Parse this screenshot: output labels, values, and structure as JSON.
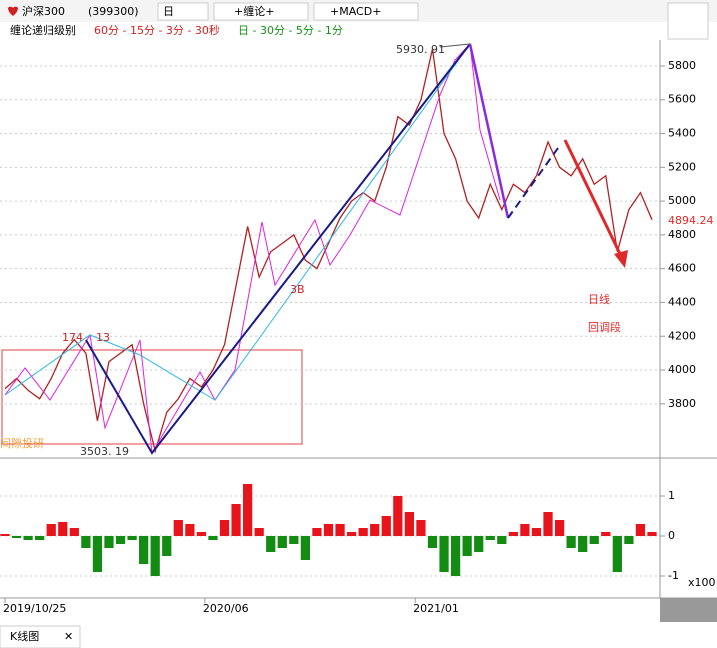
{
  "toolbar": {
    "name": "沪深300",
    "code": "(399300)",
    "period": "日",
    "indicator1": "+缠论+",
    "indicator2": "+MACD+"
  },
  "levels": {
    "label": "缠论递归级别",
    "minor": "60分 - 15分 - 3分 - 30秒",
    "major": "日 - 30分 - 5分 - 1分"
  },
  "annotations": {
    "high": "5930. 91",
    "low": "3503. 19",
    "pivot_a": "174",
    "pivot_b": "13",
    "buy_point": "3B",
    "callout_1": "日线",
    "callout_2": "回调段",
    "watermark": "间隙投研",
    "last_price": "4894.24",
    "macd_unit": "x100"
  },
  "tab": "K线图",
  "chart_data": [
    {
      "type": "line",
      "name": "price",
      "color": "#b22222",
      "values": [
        3890,
        3950,
        3880,
        3830,
        3950,
        4100,
        4180,
        4100,
        3700,
        4050,
        4100,
        4150,
        3800,
        3520,
        3750,
        3830,
        3950,
        3900,
        4000,
        4150,
        4500,
        4850,
        4550,
        4700,
        4750,
        4800,
        4650,
        4600,
        4750,
        4900,
        5000,
        5050,
        5000,
        5200,
        5500,
        5450,
        5600,
        5900,
        5400,
        5250,
        5000,
        4900,
        5100,
        4950,
        5100,
        5050,
        5150,
        5350,
        5200,
        5150,
        5250,
        5100,
        5150,
        4700,
        4950,
        5050,
        4890
      ],
      "ylim": [
        3503,
        5930
      ],
      "yticks": [
        3800,
        4000,
        4200,
        4400,
        4600,
        4800,
        5000,
        5200,
        5400,
        5600,
        5800
      ],
      "xticks": [
        {
          "value": 0,
          "label": "2019/10/25"
        },
        {
          "value": 17.3,
          "label": "2020/06"
        },
        {
          "value": 35.5,
          "label": "2021/01"
        }
      ]
    },
    {
      "type": "bar",
      "name": "macd",
      "colors": {
        "up": "#e8141c",
        "down": "#148c14"
      },
      "values": [
        0.05,
        -0.05,
        -0.1,
        -0.1,
        0.3,
        0.35,
        0.2,
        -0.3,
        -0.9,
        -0.3,
        -0.2,
        -0.1,
        -0.7,
        -1.0,
        -0.5,
        0.4,
        0.3,
        0.1,
        -0.1,
        0.4,
        0.8,
        1.3,
        0.2,
        -0.4,
        -0.3,
        -0.2,
        -0.6,
        0.2,
        0.3,
        0.3,
        0.1,
        0.2,
        0.3,
        0.5,
        1.0,
        0.6,
        0.4,
        -0.3,
        -0.9,
        -1.0,
        -0.5,
        -0.4,
        -0.1,
        -0.2,
        0.1,
        0.3,
        0.2,
        0.6,
        0.4,
        -0.3,
        -0.4,
        -0.2,
        0.1,
        -0.9,
        -0.2,
        0.3,
        0.1
      ],
      "ylim": [
        -1.5,
        1.9
      ],
      "yticks": [
        -1,
        0,
        1
      ]
    }
  ]
}
